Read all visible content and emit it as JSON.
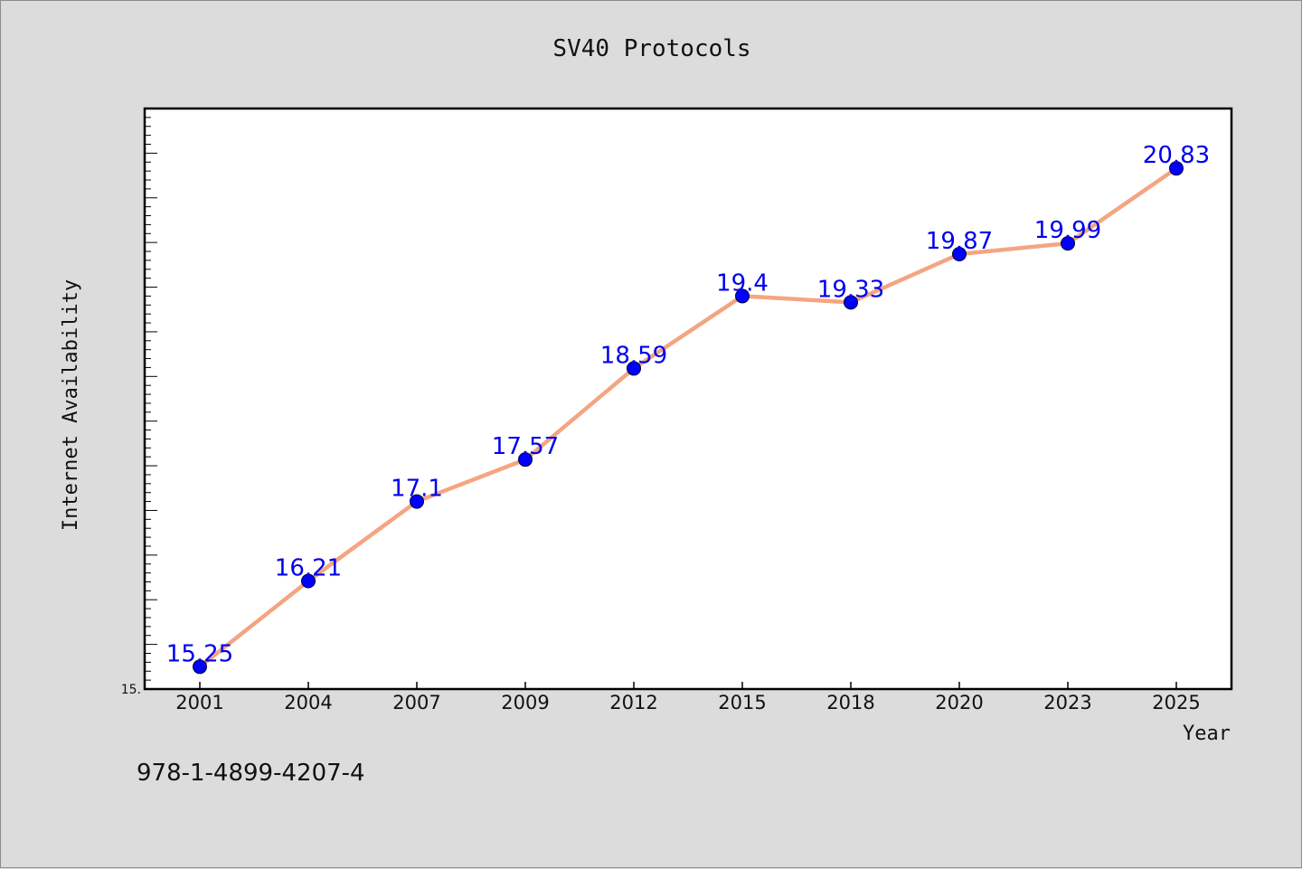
{
  "chart_data": {
    "type": "line",
    "title": "SV40 Protocols",
    "xlabel": "Year",
    "ylabel": "Internet Availability",
    "categories": [
      "2001",
      "2004",
      "2007",
      "2009",
      "2012",
      "2015",
      "2018",
      "2020",
      "2023",
      "2025"
    ],
    "values": [
      15.25,
      16.21,
      17.1,
      17.57,
      18.59,
      19.4,
      19.33,
      19.87,
      19.99,
      20.83
    ],
    "data_labels": [
      "15.25",
      "16.21",
      "17.1",
      "17.57",
      "18.59",
      "19.4",
      "19.33",
      "19.87",
      "19.99",
      "20.83"
    ],
    "ylim": [
      15,
      21.5
    ],
    "y_tick_labels": [
      "15."
    ],
    "grid": false,
    "colors": {
      "line": "#f4a582",
      "marker": "#0000ff",
      "label": "#0000ee"
    }
  },
  "footnote": "978-1-4899-4207-4"
}
